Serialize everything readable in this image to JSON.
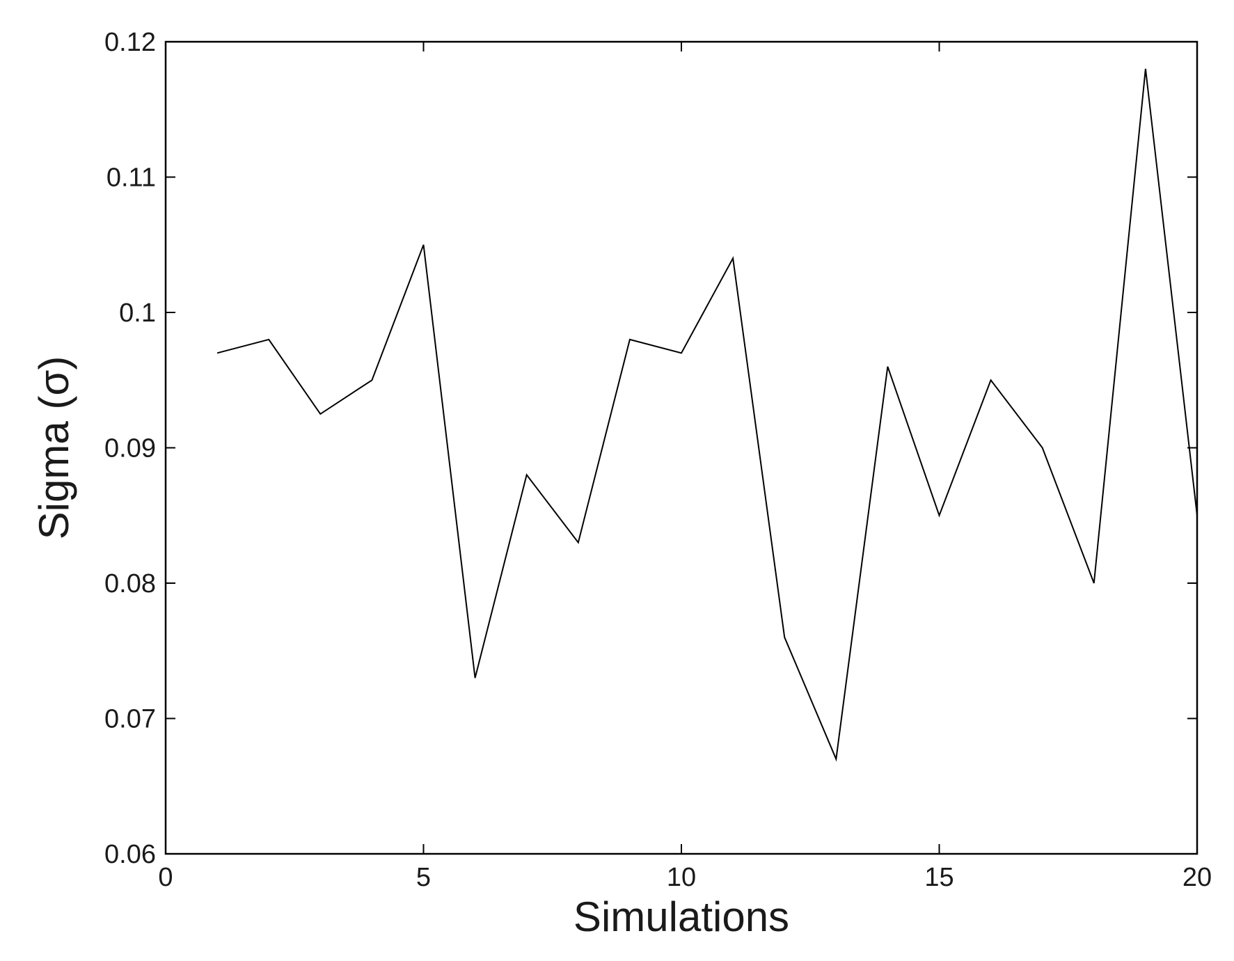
{
  "chart_data": {
    "type": "line",
    "title": "",
    "xlabel": "Simulations",
    "ylabel": "Sigma (σ)",
    "xlim": [
      0,
      20
    ],
    "ylim": [
      0.06,
      0.12
    ],
    "xticks": [
      0,
      5,
      10,
      15,
      20
    ],
    "xtick_labels": [
      "0",
      "5",
      "10",
      "15",
      "20"
    ],
    "yticks": [
      0.06,
      0.07,
      0.08,
      0.09,
      0.1,
      0.11,
      0.12
    ],
    "ytick_labels": [
      "0.06",
      "0.07",
      "0.08",
      "0.09",
      "0.1",
      "0.11",
      "0.12"
    ],
    "grid": false,
    "line_color": "#000000",
    "series": [
      {
        "x": [
          1,
          2,
          3,
          4,
          5,
          6,
          7,
          8,
          9,
          10,
          11,
          12,
          13,
          14,
          15,
          16,
          17,
          18,
          19,
          20
        ],
        "values": [
          0.097,
          0.098,
          0.0925,
          0.095,
          0.105,
          0.073,
          0.088,
          0.083,
          0.098,
          0.097,
          0.104,
          0.076,
          0.067,
          0.096,
          0.085,
          0.095,
          0.09,
          0.08,
          0.118,
          0.085
        ]
      }
    ]
  }
}
